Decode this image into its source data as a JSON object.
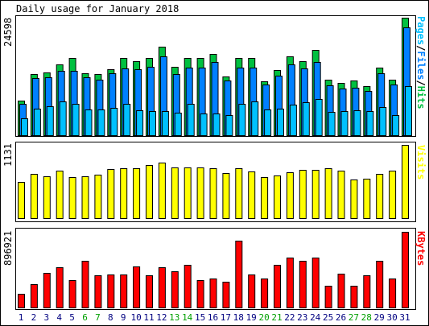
{
  "title": "Daily usage for January 2018",
  "colors": {
    "hits": "#00c040",
    "files": "#0080ff",
    "pages": "#00c0ff",
    "visits": "#ffff00",
    "kbytes": "#ff0000",
    "weekday_label": "#000080",
    "weekend_label": "#00a000"
  },
  "chart_data": [
    {
      "type": "bar",
      "panel": "usage",
      "legend_parts": [
        {
          "text": "Pages",
          "color": "#00c0ff"
        },
        {
          "text": "/",
          "color": "#000000"
        },
        {
          "text": "Files",
          "color": "#0080ff"
        },
        {
          "text": "/",
          "color": "#000000"
        },
        {
          "text": "Hits",
          "color": "#00c040"
        }
      ],
      "ymax_label": "24598",
      "ylim": [
        0,
        24598
      ],
      "categories": [
        "1",
        "2",
        "3",
        "4",
        "5",
        "6",
        "7",
        "8",
        "9",
        "10",
        "11",
        "12",
        "13",
        "14",
        "15",
        "16",
        "17",
        "18",
        "19",
        "20",
        "21",
        "22",
        "23",
        "24",
        "25",
        "26",
        "27",
        "28",
        "29",
        "30",
        "31"
      ],
      "weekend_days": [
        "6",
        "7",
        "13",
        "14",
        "20",
        "21",
        "27",
        "28"
      ],
      "series": [
        {
          "name": "Hits",
          "values": [
            7200,
            12800,
            13200,
            14800,
            16200,
            12900,
            12800,
            13800,
            16200,
            15500,
            16100,
            18600,
            14300,
            16100,
            16100,
            17100,
            12300,
            16200,
            16100,
            11300,
            13700,
            16500,
            15500,
            17900,
            11700,
            11000,
            11500,
            10200,
            14200,
            11700,
            24598
          ]
        },
        {
          "name": "Files",
          "values": [
            6600,
            12000,
            12100,
            13400,
            13400,
            12200,
            11700,
            12900,
            13900,
            13800,
            14400,
            16500,
            12800,
            14100,
            14200,
            15400,
            11500,
            14100,
            14100,
            10600,
            12400,
            14800,
            14000,
            15300,
            10400,
            9800,
            10000,
            9300,
            13000,
            10600,
            22500
          ]
        },
        {
          "name": "Pages",
          "values": [
            3600,
            5500,
            6100,
            7000,
            6500,
            5400,
            5400,
            5800,
            6500,
            5300,
            5100,
            5000,
            4800,
            6600,
            4500,
            4500,
            4200,
            6600,
            7100,
            5400,
            5600,
            6400,
            6900,
            7600,
            4900,
            5100,
            5300,
            5100,
            5900,
            4200,
            10200
          ]
        }
      ]
    },
    {
      "type": "bar",
      "panel": "visits",
      "legend_parts": [
        {
          "text": "Visits",
          "color": "#ffff00"
        }
      ],
      "ymax_label": "1131",
      "ylim": [
        0,
        1131
      ],
      "categories": [
        "1",
        "2",
        "3",
        "4",
        "5",
        "6",
        "7",
        "8",
        "9",
        "10",
        "11",
        "12",
        "13",
        "14",
        "15",
        "16",
        "17",
        "18",
        "19",
        "20",
        "21",
        "22",
        "23",
        "24",
        "25",
        "26",
        "27",
        "28",
        "29",
        "30",
        "31"
      ],
      "series": [
        {
          "name": "Visits",
          "values": [
            565,
            685,
            642,
            736,
            640,
            646,
            673,
            755,
            776,
            773,
            823,
            853,
            782,
            780,
            778,
            776,
            699,
            772,
            727,
            637,
            654,
            712,
            741,
            744,
            775,
            738,
            602,
            609,
            679,
            730,
            1131
          ]
        }
      ]
    },
    {
      "type": "bar",
      "panel": "kbytes",
      "legend_parts": [
        {
          "text": "KBytes",
          "color": "#ff0000"
        }
      ],
      "ymax_label": "896921",
      "ylim": [
        0,
        896921
      ],
      "categories": [
        "1",
        "2",
        "3",
        "4",
        "5",
        "6",
        "7",
        "8",
        "9",
        "10",
        "11",
        "12",
        "13",
        "14",
        "15",
        "16",
        "17",
        "18",
        "19",
        "20",
        "21",
        "22",
        "23",
        "24",
        "25",
        "26",
        "27",
        "28",
        "29",
        "30",
        "31"
      ],
      "series": [
        {
          "name": "KBytes",
          "values": [
            160000,
            275000,
            412000,
            474000,
            321000,
            550000,
            378000,
            391000,
            393000,
            486000,
            377000,
            481000,
            433000,
            505000,
            322000,
            342000,
            302000,
            789000,
            395000,
            343000,
            507000,
            588000,
            549000,
            589000,
            258000,
            398000,
            257000,
            378000,
            556000,
            341000,
            896921
          ]
        }
      ]
    }
  ]
}
